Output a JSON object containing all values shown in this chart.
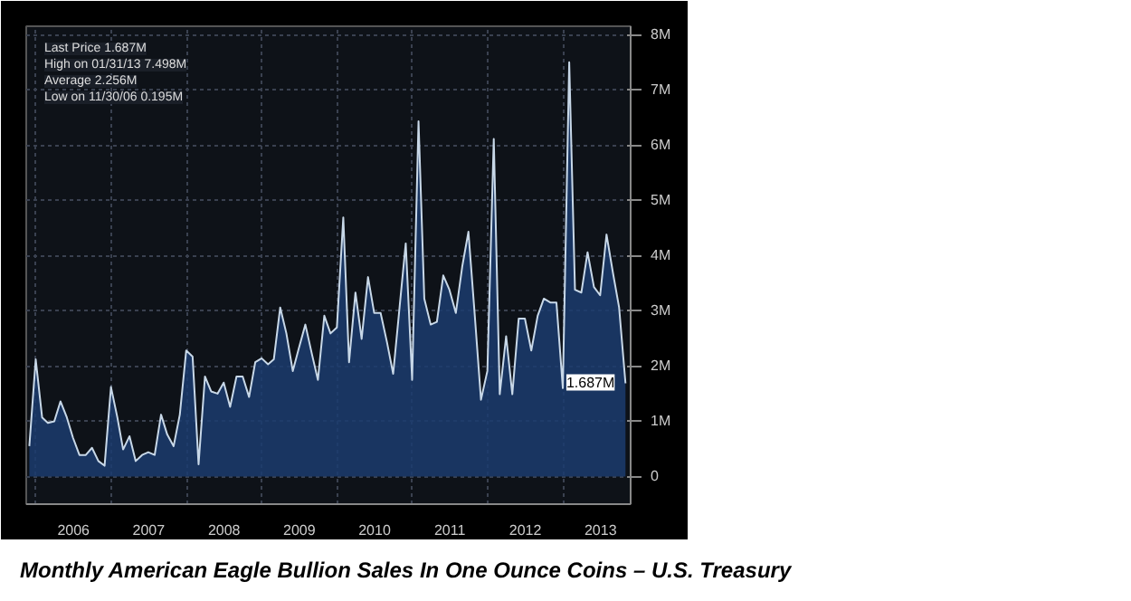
{
  "chart_data": {
    "type": "area",
    "title": "Monthly American Eagle Bullion Sales In One Ounce Coins – U.S. Treasury",
    "x": [
      "2005-11-30",
      "2005-12-31",
      "2006-01-31",
      "2006-02-28",
      "2006-03-31",
      "2006-04-30",
      "2006-05-31",
      "2006-06-30",
      "2006-07-31",
      "2006-08-31",
      "2006-09-30",
      "2006-10-31",
      "2006-11-30",
      "2006-12-31",
      "2007-01-31",
      "2007-02-28",
      "2007-03-31",
      "2007-04-30",
      "2007-05-31",
      "2007-06-30",
      "2007-07-31",
      "2007-08-31",
      "2007-09-30",
      "2007-10-31",
      "2007-11-30",
      "2007-12-31",
      "2008-01-31",
      "2008-02-29",
      "2008-03-31",
      "2008-04-30",
      "2008-05-31",
      "2008-06-30",
      "2008-07-31",
      "2008-08-31",
      "2008-09-30",
      "2008-10-31",
      "2008-11-30",
      "2008-12-31",
      "2009-01-31",
      "2009-02-28",
      "2009-03-31",
      "2009-04-30",
      "2009-05-31",
      "2009-06-30",
      "2009-07-31",
      "2009-08-31",
      "2009-09-30",
      "2009-10-31",
      "2009-11-30",
      "2009-12-31",
      "2010-01-31",
      "2010-02-28",
      "2010-03-31",
      "2010-04-30",
      "2010-05-31",
      "2010-06-30",
      "2010-07-31",
      "2010-08-31",
      "2010-09-30",
      "2010-10-31",
      "2010-11-30",
      "2010-12-31",
      "2011-01-31",
      "2011-02-28",
      "2011-03-31",
      "2011-04-30",
      "2011-05-31",
      "2011-06-30",
      "2011-07-31",
      "2011-08-31",
      "2011-09-30",
      "2011-10-31",
      "2011-11-30",
      "2011-12-31",
      "2012-01-31",
      "2012-02-29",
      "2012-03-31",
      "2012-04-30",
      "2012-05-31",
      "2012-06-30",
      "2012-07-31",
      "2012-08-31",
      "2012-09-30",
      "2012-10-31",
      "2012-11-30",
      "2012-12-31",
      "2013-01-31",
      "2013-02-28",
      "2013-03-31",
      "2013-04-30",
      "2013-05-31",
      "2013-06-30",
      "2013-07-31",
      "2013-08-31",
      "2013-09-30",
      "2013-10-31"
    ],
    "series": [
      {
        "color": "#1b3c6e",
        "values": [
          0.55,
          2.12,
          1.07,
          0.97,
          1.0,
          1.36,
          1.07,
          0.7,
          0.39,
          0.39,
          0.52,
          0.28,
          0.195,
          1.62,
          1.07,
          0.49,
          0.73,
          0.28,
          0.39,
          0.44,
          0.39,
          1.12,
          0.76,
          0.55,
          1.12,
          2.28,
          2.17,
          0.22,
          1.81,
          1.54,
          1.5,
          1.7,
          1.26,
          1.81,
          1.81,
          1.44,
          2.07,
          2.14,
          2.03,
          2.12,
          3.06,
          2.59,
          1.91,
          2.33,
          2.75,
          2.23,
          1.75,
          2.91,
          2.59,
          2.7,
          4.69,
          2.07,
          3.33,
          2.49,
          3.61,
          2.96,
          2.96,
          2.43,
          1.86,
          3.06,
          4.22,
          1.75,
          6.43,
          3.22,
          2.75,
          2.8,
          3.64,
          3.38,
          2.96,
          3.8,
          4.43,
          2.91,
          1.39,
          1.91,
          6.11,
          1.49,
          2.54,
          1.49,
          2.86,
          2.86,
          2.28,
          2.91,
          3.22,
          3.15,
          3.15,
          1.6,
          7.498,
          3.38,
          3.33,
          4.06,
          3.43,
          3.28,
          4.38,
          3.69,
          3.06,
          1.687
        ]
      }
    ],
    "xlim": [
      "2005-11-15",
      "2013-11-25"
    ],
    "xticks": [
      {
        "value": "2006-01-01",
        "label": null
      },
      {
        "value": "2006-07-02",
        "label": "2006"
      },
      {
        "value": "2007-01-01",
        "label": null
      },
      {
        "value": "2007-07-02",
        "label": "2007"
      },
      {
        "value": "2008-01-01",
        "label": null
      },
      {
        "value": "2008-07-02",
        "label": "2008"
      },
      {
        "value": "2009-01-01",
        "label": null
      },
      {
        "value": "2009-07-02",
        "label": "2009"
      },
      {
        "value": "2010-01-01",
        "label": null
      },
      {
        "value": "2010-07-02",
        "label": "2010"
      },
      {
        "value": "2011-01-01",
        "label": null
      },
      {
        "value": "2011-07-02",
        "label": "2011"
      },
      {
        "value": "2012-01-01",
        "label": null
      },
      {
        "value": "2012-07-02",
        "label": "2012"
      },
      {
        "value": "2013-01-01",
        "label": null
      },
      {
        "value": "2013-07-02",
        "label": "2013"
      }
    ],
    "ylim": [
      -0.5,
      8.15
    ],
    "yticks": [
      0,
      {
        "value": 1,
        "label": "1M"
      },
      {
        "value": 2,
        "label": "2M"
      },
      {
        "value": 3,
        "label": "3M"
      },
      {
        "value": 4,
        "label": "4M"
      },
      {
        "value": 5,
        "label": "5M"
      },
      {
        "value": 6,
        "label": "6M"
      },
      {
        "value": 7,
        "label": "7M"
      },
      {
        "value": 8,
        "label": "8M"
      }
    ],
    "grid": true,
    "annotations": [
      "Last Price 1.687M",
      "High on 01/31/13 7.498M",
      "Average 2.256M",
      "Low on 11/30/06 0.195M",
      {
        "text": "1.687M",
        "x": "2013-10-31",
        "y": 1.687
      }
    ]
  }
}
